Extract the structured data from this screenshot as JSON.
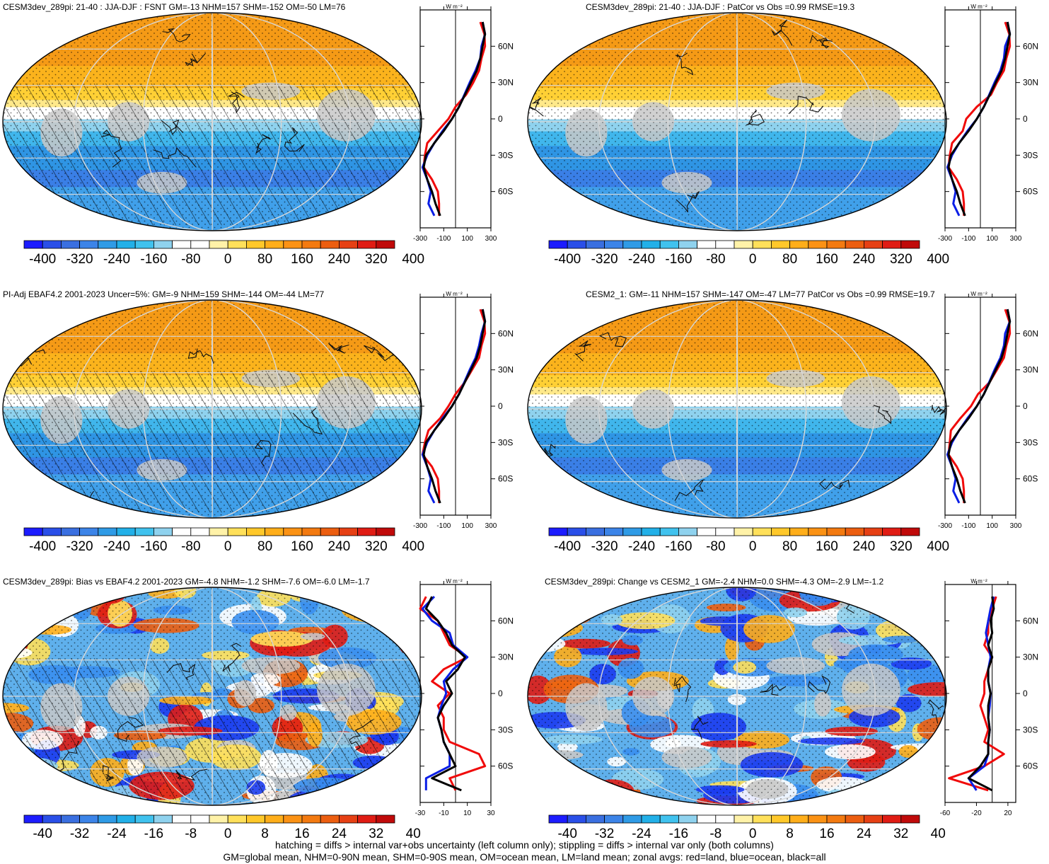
{
  "panels": [
    {
      "title": "CESM3dev_289pi: 21-40 : JJA-DJF : FSNT GM=-13 NHM=157 SHM=-152 OM=-50 LM=76",
      "units_label": "W m⁻²",
      "kind": "abs",
      "hatch": true,
      "seed": 1
    },
    {
      "title": "CESM3dev_289pi: 21-40 : JJA-DJF : PatCor vs Obs =0.99 RMSE=19.3",
      "units_label": "W m⁻²",
      "kind": "abs",
      "hatch": false,
      "seed": 2
    },
    {
      "title": "PI-Adj EBAF4.2 2001-2023 Uncer=5%: GM=-9 NHM=159 SHM=-144 OM=-44 LM=77",
      "units_label": "W m⁻²",
      "kind": "abs",
      "hatch": true,
      "seed": 3
    },
    {
      "title": "CESM2_1: GM=-11 NHM=157 SHM=-147 OM=-47 LM=77 PatCor vs Obs =0.99 RMSE=19.7",
      "units_label": "W m⁻²",
      "kind": "abs",
      "hatch": false,
      "seed": 4
    },
    {
      "title": "CESM3dev_289pi: Bias vs EBAF4.2 2001-2023 GM=-4.8 NHM=-1.2 SHM=-7.6 OM=-6.0 LM=-1.7",
      "units_label": "W m⁻²",
      "kind": "diff",
      "hatch": true,
      "seed": 5
    },
    {
      "title": "CESM3dev_289pi: Change vs CESM2_1 GM=-2.4 NHM=0.0 SHM=-4.3 OM=-2.9 LM=-1.2",
      "units_label": "W m⁻²",
      "kind": "diff",
      "hatch": false,
      "seed": 6
    }
  ],
  "colorbars": {
    "abs": {
      "labels": [
        "-400",
        "-320",
        "-240",
        "-160",
        "-80",
        "0",
        "80",
        "160",
        "240",
        "320",
        "400"
      ]
    },
    "diff": {
      "labels": [
        "-40",
        "-32",
        "-24",
        "-16",
        "-8",
        "0",
        "8",
        "16",
        "24",
        "32",
        "40"
      ]
    },
    "colors": [
      "#1c1cff",
      "#2a4fe8",
      "#3a6fe0",
      "#3c84e8",
      "#2f9be6",
      "#22b0e8",
      "#40c2ee",
      "#8fd2ee",
      "#ffffff",
      "#ffffff",
      "#fff2a8",
      "#ffe05a",
      "#ffc82a",
      "#ffae1a",
      "#fb9214",
      "#f37a10",
      "#ec5e10",
      "#e64014",
      "#e01c14",
      "#c00a0a"
    ]
  },
  "footer": {
    "line1": "hatching = diffs > internal var+obs uncertainty (left column only); stippling = diffs > internal var only (both columns)",
    "line2": "GM=global mean, NHM=0-90N mean, SHM=0-90S mean, OM=ocean mean, LM=land mean; zonal avgs: red=land, blue=ocean, black=all"
  },
  "chart_data": [
    {
      "type": "line",
      "title": "CESM3dev_289pi: 21-40 : JJA-DJF : FSNT GM=-13 NHM=157 SHM=-152 OM=-50 LM=76",
      "xlabel": "W m-2",
      "xlim": [
        -300,
        300
      ],
      "xticks": [
        "-300",
        "-100",
        "100",
        "300"
      ],
      "yticks": [
        "60N",
        "30N",
        "0",
        "30S",
        "60S"
      ],
      "y": [
        80,
        70,
        60,
        50,
        40,
        30,
        20,
        10,
        0,
        -10,
        -20,
        -30,
        -40,
        -50,
        -60,
        -70,
        -80
      ],
      "series": [
        {
          "name": "all",
          "color": "black",
          "values": [
            230,
            250,
            230,
            210,
            180,
            130,
            80,
            30,
            -30,
            -100,
            -180,
            -250,
            -270,
            -240,
            -200,
            -170,
            -130
          ]
        },
        {
          "name": "ocean",
          "color": "blue",
          "values": [
            230,
            250,
            220,
            210,
            170,
            120,
            75,
            30,
            -30,
            -110,
            -180,
            -240,
            -280,
            -240,
            -210,
            -230,
            -180
          ]
        },
        {
          "name": "land",
          "color": "red",
          "values": [
            210,
            245,
            250,
            220,
            200,
            150,
            90,
            0,
            -60,
            -150,
            -240,
            -260,
            -270,
            -200,
            -150,
            -140,
            -140
          ]
        }
      ]
    },
    {
      "type": "line",
      "title": "CESM3dev_289pi: 21-40 : JJA-DJF : PatCor vs Obs =0.99 RMSE=19.3",
      "xlabel": "W m-2",
      "xlim": [
        -300,
        300
      ],
      "xticks": [
        "-300",
        "-100",
        "100",
        "300"
      ],
      "yticks": [
        "60N",
        "30N",
        "0",
        "30S",
        "60S"
      ],
      "y": [
        80,
        70,
        60,
        50,
        40,
        30,
        20,
        10,
        0,
        -10,
        -20,
        -30,
        -40,
        -50,
        -60,
        -70,
        -80
      ],
      "series": [
        {
          "name": "all",
          "color": "black",
          "values": [
            230,
            250,
            230,
            210,
            180,
            130,
            80,
            30,
            -30,
            -100,
            -180,
            -250,
            -270,
            -240,
            -200,
            -170,
            -130
          ]
        },
        {
          "name": "ocean",
          "color": "blue",
          "values": [
            230,
            250,
            210,
            200,
            170,
            120,
            75,
            30,
            -30,
            -110,
            -180,
            -240,
            -280,
            -240,
            -210,
            -230,
            -180
          ]
        },
        {
          "name": "land",
          "color": "red",
          "values": [
            210,
            245,
            250,
            220,
            200,
            140,
            90,
            -30,
            -120,
            -150,
            -240,
            -260,
            -270,
            -200,
            -150,
            -140,
            -140
          ]
        }
      ]
    },
    {
      "type": "line",
      "title": "PI-Adj EBAF4.2 2001-2023 Uncer=5%: GM=-9 NHM=159 SHM=-144 OM=-44 LM=77",
      "xlabel": "W m-2",
      "xlim": [
        -300,
        300
      ],
      "xticks": [
        "-300",
        "-100",
        "100",
        "300"
      ],
      "yticks": [
        "60N",
        "30N",
        "0",
        "30S",
        "60S"
      ],
      "y": [
        80,
        70,
        60,
        50,
        40,
        30,
        20,
        10,
        0,
        -10,
        -20,
        -30,
        -40,
        -50,
        -60,
        -70,
        -80
      ],
      "series": [
        {
          "name": "all",
          "color": "black",
          "values": [
            230,
            250,
            230,
            210,
            180,
            130,
            80,
            30,
            -30,
            -100,
            -180,
            -250,
            -270,
            -240,
            -200,
            -170,
            -130
          ]
        },
        {
          "name": "ocean",
          "color": "blue",
          "values": [
            230,
            250,
            220,
            200,
            170,
            120,
            75,
            30,
            -30,
            -110,
            -180,
            -240,
            -280,
            -240,
            -210,
            -230,
            -180
          ]
        },
        {
          "name": "land",
          "color": "red",
          "values": [
            210,
            245,
            250,
            220,
            200,
            140,
            80,
            0,
            -60,
            -130,
            -230,
            -260,
            -280,
            -200,
            -150,
            -140,
            -140
          ]
        }
      ]
    },
    {
      "type": "line",
      "title": "CESM2_1: GM=-11 NHM=157 SHM=-147 OM=-47 LM=77 PatCor vs Obs =0.99 RMSE=19.7",
      "xlabel": "W m-2",
      "xlim": [
        -300,
        300
      ],
      "xticks": [
        "-300",
        "-100",
        "100",
        "300"
      ],
      "yticks": [
        "60N",
        "30N",
        "0",
        "30S",
        "60S"
      ],
      "y": [
        80,
        70,
        60,
        50,
        40,
        30,
        20,
        10,
        0,
        -10,
        -20,
        -30,
        -40,
        -50,
        -60,
        -70,
        -80
      ],
      "series": [
        {
          "name": "all",
          "color": "black",
          "values": [
            230,
            250,
            230,
            210,
            180,
            130,
            80,
            30,
            -30,
            -100,
            -180,
            -250,
            -270,
            -240,
            -200,
            -170,
            -130
          ]
        },
        {
          "name": "ocean",
          "color": "blue",
          "values": [
            230,
            250,
            210,
            200,
            170,
            120,
            75,
            30,
            -30,
            -110,
            -180,
            -240,
            -280,
            -240,
            -210,
            -230,
            -180
          ]
        },
        {
          "name": "land",
          "color": "red",
          "values": [
            210,
            245,
            250,
            220,
            200,
            140,
            80,
            -20,
            -80,
            -170,
            -250,
            -260,
            -270,
            -200,
            -150,
            -140,
            -140
          ]
        }
      ]
    },
    {
      "type": "line",
      "title": "CESM3dev_289pi: Bias vs EBAF4.2 2001-2023 GM=-4.8 NHM=-1.2 SHM=-7.6 OM=-6.0 LM=-1.7",
      "xlabel": "W m-2",
      "xlim": [
        -30,
        30
      ],
      "xticks": [
        "-30",
        "-10",
        "10",
        "30"
      ],
      "yticks": [
        "60N",
        "30N",
        "0",
        "30S",
        "60S"
      ],
      "y": [
        80,
        70,
        60,
        50,
        40,
        30,
        20,
        10,
        0,
        -10,
        -20,
        -30,
        -40,
        -50,
        -60,
        -70,
        -80
      ],
      "series": [
        {
          "name": "all",
          "color": "black",
          "values": [
            -20,
            -25,
            -15,
            -8,
            -3,
            8,
            2,
            -8,
            -3,
            -10,
            -15,
            -12,
            -10,
            -5,
            0,
            -20,
            5
          ]
        },
        {
          "name": "ocean",
          "color": "blue",
          "values": [
            -18,
            -28,
            -20,
            -5,
            -2,
            10,
            -2,
            -10,
            -8,
            -12,
            -15,
            -12,
            -10,
            -5,
            -5,
            -25,
            -25
          ]
        },
        {
          "name": "land",
          "color": "red",
          "values": [
            -25,
            -30,
            -15,
            -10,
            -5,
            10,
            -10,
            -20,
            -5,
            -15,
            -10,
            -10,
            -5,
            20,
            25,
            -5,
            0
          ]
        }
      ]
    },
    {
      "type": "line",
      "title": "CESM3dev_289pi: Change vs CESM2_1 GM=-2.4 NHM=0.0 SHM=-4.3 OM=-2.9 LM=-1.2",
      "xlabel": "W m-2",
      "xlim": [
        -60,
        30
      ],
      "xticks": [
        "-60",
        "-20",
        "20"
      ],
      "yticks": [
        "60N",
        "30N",
        "0",
        "30S",
        "60S"
      ],
      "y": [
        80,
        70,
        60,
        50,
        40,
        30,
        20,
        10,
        0,
        -10,
        -20,
        -30,
        -40,
        -50,
        -60,
        -70,
        -80
      ],
      "series": [
        {
          "name": "all",
          "color": "black",
          "values": [
            0,
            2,
            -2,
            0,
            -5,
            0,
            -5,
            -5,
            -2,
            -5,
            -5,
            -3,
            -5,
            -5,
            -15,
            -30,
            0
          ]
        },
        {
          "name": "ocean",
          "color": "blue",
          "values": [
            2,
            -2,
            -5,
            -8,
            -5,
            -2,
            -5,
            -5,
            -2,
            -3,
            -5,
            -3,
            -5,
            -5,
            -10,
            -30,
            -20
          ]
        },
        {
          "name": "land",
          "color": "red",
          "values": [
            5,
            0,
            -5,
            -5,
            -10,
            0,
            -5,
            -10,
            -10,
            -15,
            -10,
            -5,
            -10,
            15,
            -10,
            -55,
            -5
          ]
        }
      ]
    }
  ]
}
